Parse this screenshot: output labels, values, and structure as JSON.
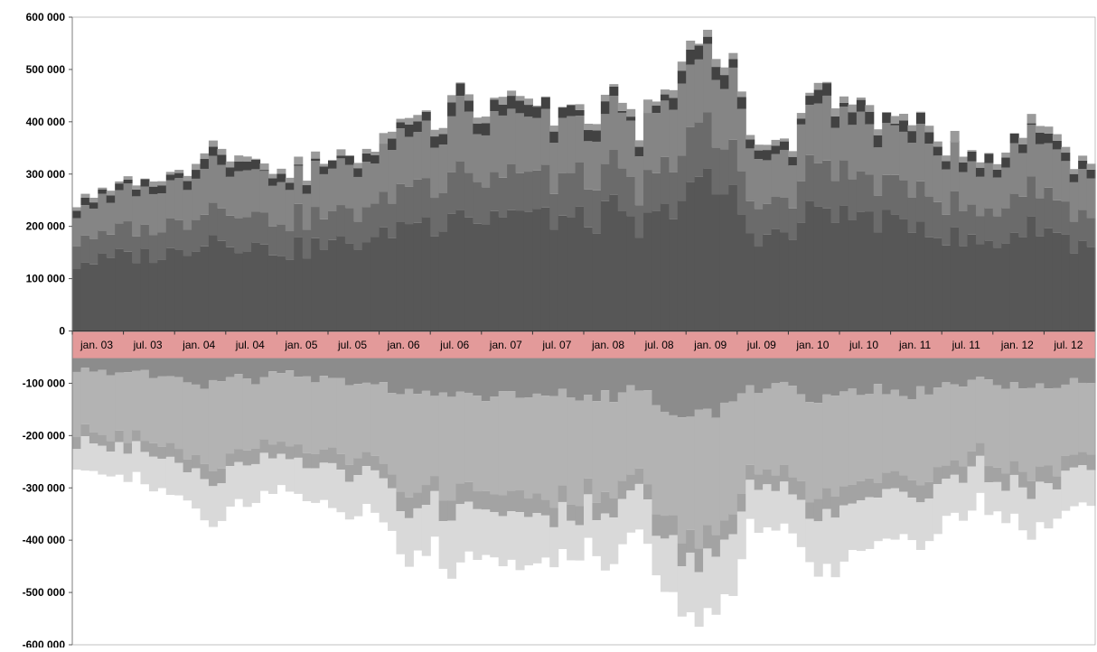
{
  "chart_data": {
    "type": "area",
    "stacked": true,
    "mirrored": true,
    "title": "",
    "xlabel": "",
    "ylabel": "",
    "ylim": [
      -600000,
      600000
    ],
    "y_ticks": [
      600000,
      500000,
      400000,
      300000,
      200000,
      100000,
      0,
      -100000,
      -200000,
      -300000,
      -400000,
      -500000,
      -600000
    ],
    "y_tick_labels": [
      "600 000",
      "500 000",
      "400 000",
      "300 000",
      "200 000",
      "100 000",
      "0",
      "-100 000",
      "-200 000",
      "-300 000",
      "-400 000",
      "-500 000",
      "-600 000"
    ],
    "x_tick_labels": [
      "jan. 03",
      "jul. 03",
      "jan. 04",
      "jul. 04",
      "jan. 05",
      "jul. 05",
      "jan. 06",
      "jul. 06",
      "jan. 07",
      "jul. 07",
      "jan. 08",
      "jul. 08",
      "jan. 09",
      "jul. 09",
      "jan. 10",
      "jul. 10",
      "jan. 11",
      "jul. 11",
      "jan. 12",
      "jul. 12"
    ],
    "x_label_band_color": "#e39a9a",
    "legend": "none",
    "grid": false,
    "x_unit": "month",
    "x_start": "2003-01",
    "x_end": "2012-12",
    "positive_total_keypoints": [
      [
        "2003-01",
        258000
      ],
      [
        "2003-07",
        285000
      ],
      [
        "2004-01",
        300000
      ],
      [
        "2004-05",
        370000
      ],
      [
        "2004-07",
        340000
      ],
      [
        "2005-01",
        305000
      ],
      [
        "2005-07",
        330000
      ],
      [
        "2006-01",
        355000
      ],
      [
        "2006-04",
        430000
      ],
      [
        "2006-07",
        400000
      ],
      [
        "2006-09",
        480000
      ],
      [
        "2007-01",
        420000
      ],
      [
        "2007-04",
        460000
      ],
      [
        "2007-07",
        440000
      ],
      [
        "2007-11",
        430000
      ],
      [
        "2008-01",
        410000
      ],
      [
        "2008-04",
        455000
      ],
      [
        "2008-07",
        380000
      ],
      [
        "2008-11",
        480000
      ],
      [
        "2009-01",
        570000
      ],
      [
        "2009-03",
        555000
      ],
      [
        "2009-06",
        510000
      ],
      [
        "2009-08",
        380000
      ],
      [
        "2010-01",
        360000
      ],
      [
        "2010-04",
        490000
      ],
      [
        "2010-07",
        445000
      ],
      [
        "2010-10",
        430000
      ],
      [
        "2011-01",
        400000
      ],
      [
        "2011-04",
        425000
      ],
      [
        "2011-07",
        360000
      ],
      [
        "2011-11",
        330000
      ],
      [
        "2012-01",
        340000
      ],
      [
        "2012-06",
        410000
      ],
      [
        "2012-09",
        345000
      ],
      [
        "2012-12",
        325000
      ]
    ],
    "negative_total_keypoints": [
      [
        "2003-01",
        -260000
      ],
      [
        "2003-07",
        -295000
      ],
      [
        "2004-01",
        -310000
      ],
      [
        "2004-05",
        -380000
      ],
      [
        "2004-07",
        -350000
      ],
      [
        "2005-01",
        -300000
      ],
      [
        "2005-07",
        -340000
      ],
      [
        "2006-01",
        -370000
      ],
      [
        "2006-04",
        -440000
      ],
      [
        "2006-07",
        -410000
      ],
      [
        "2006-09",
        -480000
      ],
      [
        "2007-01",
        -430000
      ],
      [
        "2007-04",
        -460000
      ],
      [
        "2007-07",
        -445000
      ],
      [
        "2007-11",
        -450000
      ],
      [
        "2008-01",
        -420000
      ],
      [
        "2008-04",
        -460000
      ],
      [
        "2008-07",
        -390000
      ],
      [
        "2008-11",
        -520000
      ],
      [
        "2009-01",
        -570000
      ],
      [
        "2009-03",
        -560000
      ],
      [
        "2009-06",
        -520000
      ],
      [
        "2009-08",
        -390000
      ],
      [
        "2010-01",
        -380000
      ],
      [
        "2010-04",
        -490000
      ],
      [
        "2010-07",
        -450000
      ],
      [
        "2010-10",
        -420000
      ],
      [
        "2011-01",
        -400000
      ],
      [
        "2011-04",
        -420000
      ],
      [
        "2011-07",
        -370000
      ],
      [
        "2011-11",
        -340000
      ],
      [
        "2012-01",
        -345000
      ],
      [
        "2012-06",
        -405000
      ],
      [
        "2012-09",
        -350000
      ],
      [
        "2012-12",
        -325000
      ]
    ],
    "series_positive": [
      {
        "color": "#575757",
        "share": 0.5
      },
      {
        "color": "#6b6b6b",
        "share": 0.18
      },
      {
        "color": "#858585",
        "share": 0.24
      },
      {
        "color": "#424242",
        "share": 0.05
      },
      {
        "color": "#9a9a9a",
        "share": 0.03
      }
    ],
    "series_negative": [
      {
        "color": "#8c8c8c",
        "share": 0.28
      },
      {
        "color": "#b3b3b3",
        "share": 0.42
      },
      {
        "color": "#a3a3a3",
        "share": 0.08
      },
      {
        "color": "#d9d9d9",
        "share": 0.22
      }
    ]
  }
}
